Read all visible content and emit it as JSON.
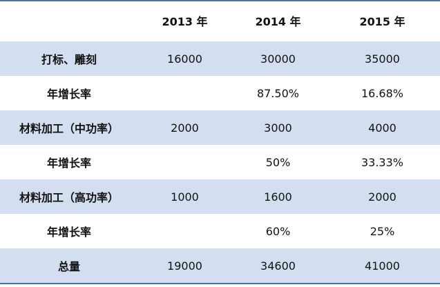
{
  "table": {
    "header": [
      null,
      "2013 年",
      "2014 年",
      "2015 年"
    ],
    "rows": [
      [
        "打标、雕刻",
        "16000",
        "30000",
        "35000"
      ],
      [
        "年增长率",
        null,
        "87.50%",
        "16.68%"
      ],
      [
        "材料加工（中功率）",
        "2000",
        "3000",
        "4000"
      ],
      [
        "年增长率",
        null,
        "50%",
        "33.33%"
      ],
      [
        "材料加工（高功率）",
        "1000",
        "1600",
        "2000"
      ],
      [
        "年增长率",
        null,
        "60%",
        "25%"
      ],
      [
        "总量",
        "19000",
        "34600",
        "41000"
      ]
    ]
  }
}
